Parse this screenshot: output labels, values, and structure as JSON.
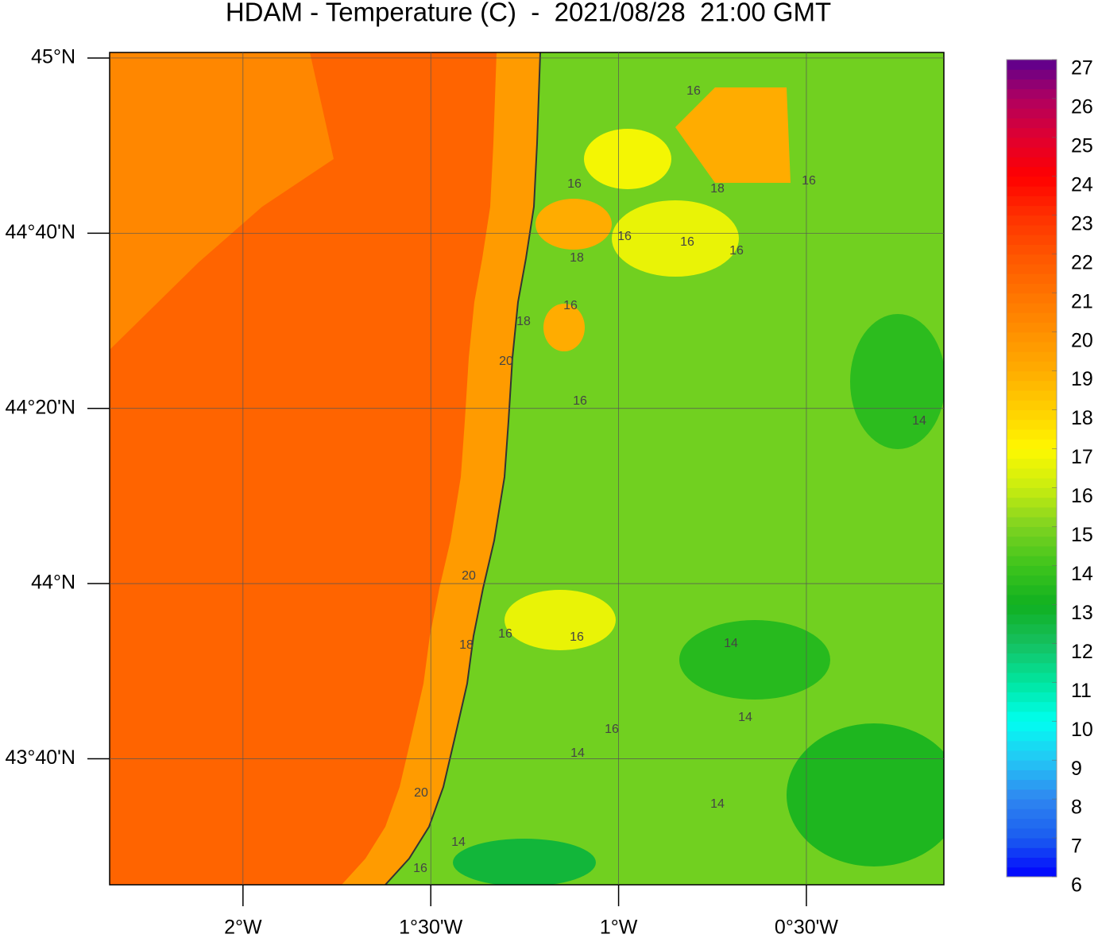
{
  "title": "HDAM - Temperature (C)  -  2021/08/28  21:00 GMT",
  "map": {
    "lon_range": [
      -2.355,
      -0.134
    ],
    "lat_range": [
      43.427,
      45.0105
    ],
    "lat_ticks": [
      {
        "value": 45,
        "label": "45°N"
      },
      {
        "value": 44.6667,
        "label": "44°40'N"
      },
      {
        "value": 44.3333,
        "label": "44°20'N"
      },
      {
        "value": 44,
        "label": "44°N"
      },
      {
        "value": 43.6667,
        "label": "43°40'N"
      }
    ],
    "lon_ticks": [
      {
        "value": -2,
        "label": "2°W"
      },
      {
        "value": -1.5,
        "label": "1°30'W"
      },
      {
        "value": -1,
        "label": "1°W"
      },
      {
        "value": -0.5,
        "label": "0°30'W"
      }
    ],
    "grid": true,
    "field": [
      14.8,
      21.5,
      20.3,
      19.6,
      13.5,
      13.3,
      13.6,
      12.6,
      16.6,
      16.6,
      16.8,
      19,
      19,
      19
    ],
    "contour_labels": [
      16,
      16,
      18,
      16,
      16,
      16,
      16,
      18,
      16,
      18,
      20,
      16,
      14,
      20,
      16,
      16,
      18,
      14,
      16,
      14,
      14,
      14,
      20,
      14,
      16
    ]
  },
  "colorbar": {
    "range": [
      6,
      27
    ],
    "ticks": [
      6,
      7,
      8,
      9,
      10,
      11,
      12,
      13,
      14,
      15,
      16,
      17,
      18,
      19,
      20,
      21,
      22,
      23,
      24,
      25,
      26,
      27
    ],
    "colors": [
      "#0000ff",
      "#1a5cf0",
      "#2f86f0",
      "#24c6f5",
      "#00fff0",
      "#00e6a0",
      "#16c060",
      "#10b020",
      "#3ec41c",
      "#7ed321",
      "#c8ec10",
      "#fff800",
      "#ffd000",
      "#ffac00",
      "#ff9000",
      "#ff7300",
      "#ff5500",
      "#ff3000",
      "#ff0000",
      "#e00030",
      "#b00060",
      "#5a0090"
    ]
  }
}
